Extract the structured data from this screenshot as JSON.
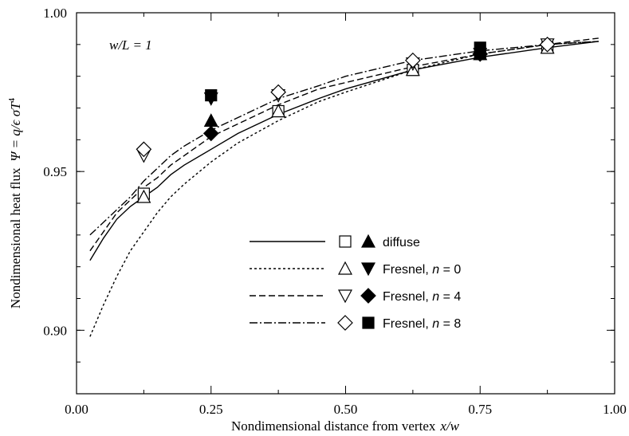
{
  "chart_data": {
    "type": "line",
    "xlabel_prefix": "Nondimensional distance from vertex",
    "xlabel_var": "x/w",
    "ylabel_prefix": "Nondimensional heat flux",
    "ylabel_var": "Ψ = q/ϵ σT",
    "ylabel_sup": "4",
    "annotation": "w/L = 1",
    "xlim": [
      0,
      1
    ],
    "ylim": [
      0.88,
      1.0
    ],
    "x_ticks": [
      "0.00",
      "0.25",
      "0.50",
      "0.75",
      "1.00"
    ],
    "y_ticks": [
      "0.90",
      "0.95",
      "1.00"
    ],
    "grid": false,
    "legend_position": "center-right",
    "series": [
      {
        "name": "diffuse",
        "line": "solid",
        "open_marker": "square",
        "filled_marker": "triangle-up",
        "curve_x": [
          0.025,
          0.05,
          0.075,
          0.1,
          0.125,
          0.15,
          0.175,
          0.2,
          0.25,
          0.3,
          0.375,
          0.45,
          0.5,
          0.625,
          0.75,
          0.875,
          0.97
        ],
        "curve_y": [
          0.922,
          0.929,
          0.935,
          0.939,
          0.942,
          0.945,
          0.949,
          0.952,
          0.957,
          0.962,
          0.968,
          0.973,
          0.976,
          0.982,
          0.986,
          0.989,
          0.991
        ],
        "open_points": {
          "x": [
            0.125,
            0.375,
            0.625,
            0.75,
            0.875
          ],
          "y": [
            0.943,
            0.969,
            0.982,
            0.987,
            0.989
          ]
        },
        "filled_points": {
          "x": [
            0.25,
            0.75
          ],
          "y": [
            0.966,
            0.987
          ]
        }
      },
      {
        "name": "Fresnel, n = 0",
        "line": "dotted",
        "open_marker": "triangle-up",
        "filled_marker": "triangle-down",
        "curve_x": [
          0.025,
          0.05,
          0.075,
          0.1,
          0.125,
          0.15,
          0.175,
          0.2,
          0.25,
          0.3,
          0.375,
          0.45,
          0.5,
          0.625,
          0.75,
          0.875,
          0.97
        ],
        "curve_y": [
          0.898,
          0.908,
          0.917,
          0.925,
          0.931,
          0.937,
          0.942,
          0.946,
          0.953,
          0.959,
          0.966,
          0.972,
          0.975,
          0.982,
          0.987,
          0.99,
          0.991
        ],
        "open_points": {
          "x": [
            0.125,
            0.375,
            0.625,
            0.875
          ],
          "y": [
            0.942,
            0.969,
            0.982,
            0.989
          ]
        },
        "filled_points": {
          "x": [
            0.25,
            0.75
          ],
          "y": [
            0.973,
            0.987
          ]
        }
      },
      {
        "name": "Fresnel, n = 4",
        "line": "dashed",
        "open_marker": "triangle-down",
        "filled_marker": "diamond",
        "curve_x": [
          0.025,
          0.05,
          0.075,
          0.1,
          0.125,
          0.15,
          0.175,
          0.2,
          0.25,
          0.3,
          0.375,
          0.45,
          0.5,
          0.625,
          0.75,
          0.875,
          0.97
        ],
        "curve_y": [
          0.925,
          0.931,
          0.937,
          0.941,
          0.945,
          0.948,
          0.952,
          0.955,
          0.961,
          0.965,
          0.971,
          0.976,
          0.978,
          0.983,
          0.987,
          0.99,
          0.992
        ],
        "open_points": {
          "x": [
            0.125,
            0.375,
            0.625,
            0.875
          ],
          "y": [
            0.955,
            0.974,
            0.984,
            0.99
          ]
        },
        "filled_points": {
          "x": [
            0.25,
            0.75
          ],
          "y": [
            0.962,
            0.987
          ]
        }
      },
      {
        "name": "Fresnel, n = 8",
        "line": "dashdot",
        "open_marker": "diamond",
        "filled_marker": "square",
        "curve_x": [
          0.025,
          0.05,
          0.075,
          0.1,
          0.125,
          0.15,
          0.175,
          0.2,
          0.25,
          0.3,
          0.375,
          0.45,
          0.5,
          0.625,
          0.75,
          0.875,
          0.97
        ],
        "curve_y": [
          0.93,
          0.934,
          0.938,
          0.942,
          0.947,
          0.951,
          0.955,
          0.958,
          0.963,
          0.967,
          0.973,
          0.977,
          0.98,
          0.985,
          0.988,
          0.99,
          0.991
        ],
        "open_points": {
          "x": [
            0.125,
            0.375,
            0.625,
            0.875
          ],
          "y": [
            0.957,
            0.975,
            0.985,
            0.99
          ]
        },
        "filled_points": {
          "x": [
            0.25,
            0.75
          ],
          "y": [
            0.974,
            0.989
          ]
        }
      }
    ]
  }
}
